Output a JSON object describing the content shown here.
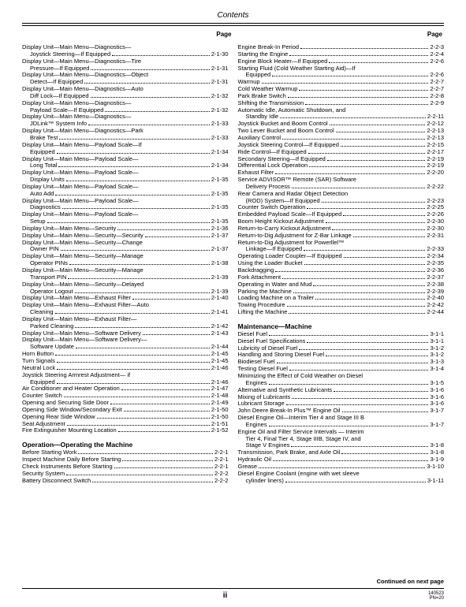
{
  "header": {
    "title": "Contents"
  },
  "colHeader": "Page",
  "footer": {
    "continued": "Continued on next page",
    "center": "ii",
    "rightTop": "140523",
    "rightBottom": "PN=20"
  },
  "leftCol": {
    "entries": [
      {
        "label": "Display Unit—Main Menu—Diagnostics—",
        "page": null
      },
      {
        "label": "Joystick Steering—If Equipped",
        "page": "2-1-30",
        "cont": true
      },
      {
        "label": "Display Unit—Main Menu—Diagnostics—Tire",
        "page": null
      },
      {
        "label": "Pressure—If Equipped",
        "page": "2-1-31",
        "cont": true
      },
      {
        "label": "Display Unit—Main Menu—Diagnostics—Object",
        "page": null
      },
      {
        "label": "Detect—If Equipped",
        "page": "2-1-31",
        "cont": true
      },
      {
        "label": "Display Unit—Main Menu—Diagnostics—Auto",
        "page": null
      },
      {
        "label": "Diff Lock—If Equipped",
        "page": "2-1-32",
        "cont": true
      },
      {
        "label": "Display Unit—Main Menu—Diagnostics—",
        "page": null
      },
      {
        "label": "Payload Scale—If Equipped",
        "page": "2-1-32",
        "cont": true
      },
      {
        "label": "Display Unit—Main Menu—Diagnostics—",
        "page": null
      },
      {
        "label": "JDLink™ System Info",
        "page": "2-1-33",
        "cont": true
      },
      {
        "label": "Display Unit—Main Menu—Diagnostics—Park",
        "page": null
      },
      {
        "label": "Brake Test",
        "page": "2-1-33",
        "cont": true
      },
      {
        "label": "Display Unit—Main Menu—Payload Scale—If",
        "page": null
      },
      {
        "label": "Equipped",
        "page": "2-1-34",
        "cont": true
      },
      {
        "label": "Display Unit—Main Menu—Payload Scale—",
        "page": null
      },
      {
        "label": "Long Total",
        "page": "2-1-34",
        "cont": true
      },
      {
        "label": "Display Unit—Main Menu—Payload Scale—",
        "page": null
      },
      {
        "label": "Display Units",
        "page": "2-1-35",
        "cont": true
      },
      {
        "label": "Display Unit—Main Menu—Payload Scale—",
        "page": null
      },
      {
        "label": "Auto Add",
        "page": "2-1-35",
        "cont": true
      },
      {
        "label": "Display Unit—Main Menu—Payload Scale—",
        "page": null
      },
      {
        "label": "Diagnostics",
        "page": "2-1-35",
        "cont": true
      },
      {
        "label": "Display Unit—Main Menu—Payload Scale—",
        "page": null
      },
      {
        "label": "Setup",
        "page": "2-1-35",
        "cont": true
      },
      {
        "label": "Display Unit—Main Menu—Security",
        "page": "2-1-36"
      },
      {
        "label": "Display Unit—Main Menu—Security—Security",
        "page": "2-1-37"
      },
      {
        "label": "Display Unit—Main Menu—Security—Change",
        "page": null
      },
      {
        "label": "Owner PIN",
        "page": "2-1-37",
        "cont": true
      },
      {
        "label": "Display Unit—Main Menu—Security—Manage",
        "page": null
      },
      {
        "label": "Operator PINs",
        "page": "2-1-38",
        "cont": true
      },
      {
        "label": "Display Unit—Main Menu—Security—Manage",
        "page": null
      },
      {
        "label": "Transport PIN",
        "page": "2-1-39",
        "cont": true
      },
      {
        "label": "Display Unit—Main Menu—Security—Delayed",
        "page": null
      },
      {
        "label": "Operator Logout",
        "page": "2-1-39",
        "cont": true
      },
      {
        "label": "Display Unit—Main Menu—Exhaust Filter",
        "page": "2-1-40"
      },
      {
        "label": "Display Unit—Main Menu—Exhaust Filter—Auto",
        "page": null
      },
      {
        "label": "Cleaning",
        "page": "2-1-41",
        "cont": true
      },
      {
        "label": "Display Unit—Main Menu—Exhaust Filter—",
        "page": null
      },
      {
        "label": "Parked Cleaning",
        "page": "2-1-42",
        "cont": true
      },
      {
        "label": "Display Unit—Main Menu—Software Delivery",
        "page": "2-1-43"
      },
      {
        "label": "Display Unit—Main Menu—Software Delivery—",
        "page": null
      },
      {
        "label": "Software Update",
        "page": "2-1-44",
        "cont": true
      },
      {
        "label": "Horn Button",
        "page": "2-1-45"
      },
      {
        "label": "Turn Signals",
        "page": "2-1-45"
      },
      {
        "label": "Neutral Lock",
        "page": "2-1-46"
      },
      {
        "label": "Joystick Steering Armrest Adjustment— if",
        "page": null
      },
      {
        "label": "Equipped",
        "page": "2-1-46",
        "cont": true
      },
      {
        "label": "Air Conditioner and Heater Operation",
        "page": "2-1-47"
      },
      {
        "label": "Counter Switch",
        "page": "2-1-48"
      },
      {
        "label": "Opening and Securing Side Door",
        "page": "2-1-49"
      },
      {
        "label": "Opening Side Window/Secondary Exit",
        "page": "2-1-50"
      },
      {
        "label": "Opening Rear Side Window",
        "page": "2-1-50"
      },
      {
        "label": "Seat Adjustment",
        "page": "2-1-51"
      },
      {
        "label": "Fire Extinguisher Mounting Location",
        "page": "2-1-52"
      }
    ],
    "sectionTitle": "Operation—Operating the Machine",
    "sectionEntries": [
      {
        "label": "Before Starting Work",
        "page": "2-2-1"
      },
      {
        "label": "Inspect Machine Daily Before Starting",
        "page": "2-2-1"
      },
      {
        "label": "Check Instruments Before Starting",
        "page": "2-2-1"
      },
      {
        "label": "Security System",
        "page": "2-2-2"
      },
      {
        "label": "Battery Disconnect Switch",
        "page": "2-2-2"
      }
    ]
  },
  "rightCol": {
    "entries": [
      {
        "label": "Engine Break-In Period",
        "page": "2-2-3"
      },
      {
        "label": "Starting the Engine",
        "page": "2-2-4"
      },
      {
        "label": "Engine Block Heater—If Equipped",
        "page": "2-2-6"
      },
      {
        "label": "Starting Fluid (Cold Weather Starting Aid)—If",
        "page": null
      },
      {
        "label": "Equipped",
        "page": "2-2-6",
        "cont": true
      },
      {
        "label": "Warmup",
        "page": "2-2-7"
      },
      {
        "label": "Cold Weather Warmup",
        "page": "2-2-7"
      },
      {
        "label": "Park Brake Switch",
        "page": "2-2-8"
      },
      {
        "label": "Shifting the Transmission",
        "page": "2-2-9"
      },
      {
        "label": "Automatic Idle, Automatic Shutdown, and",
        "page": null
      },
      {
        "label": "Standby Idle",
        "page": "2-2-11",
        "cont": true
      },
      {
        "label": "Joystick Bucket and Boom Control",
        "page": "2-2-12"
      },
      {
        "label": "Two Lever Bucket and Boom Control",
        "page": "2-2-13"
      },
      {
        "label": "Auxiliary Control",
        "page": "2-2-13"
      },
      {
        "label": "Joystick Steering Control—If Equipped",
        "page": "2-2-15"
      },
      {
        "label": "Ride Control—If Equipped",
        "page": "2-2-17"
      },
      {
        "label": "Secondary Steering—If Equipped",
        "page": "2-2-19"
      },
      {
        "label": "Differential Lock Operation",
        "page": "2-2-19"
      },
      {
        "label": "Exhaust Filter",
        "page": "2-2-20"
      },
      {
        "label": "Service ADVISOR™ Remote (SAR) Software",
        "page": null
      },
      {
        "label": "Delivery Process",
        "page": "2-2-22",
        "cont": true
      },
      {
        "label": "Rear Camera and Radar Object Detection",
        "page": null
      },
      {
        "label": "(ROD) System—If Equipped",
        "page": "2-2-23",
        "cont": true
      },
      {
        "label": "Counter Switch Operation",
        "page": "2-2-25"
      },
      {
        "label": "Embedded Payload Scale—If Equipped",
        "page": "2-2-26"
      },
      {
        "label": "Boom Height Kickout Adjustment",
        "page": "2-2-30"
      },
      {
        "label": "Return-to-Carry Kickout Adjustment",
        "page": "2-2-30"
      },
      {
        "label": "Return-to-Dig Adjustment for Z-Bar Linkage",
        "page": "2-2-31"
      },
      {
        "label": "Return-to-Dig Adjustment for Powerllel™",
        "page": null
      },
      {
        "label": "Linkage—If Equipped",
        "page": "2-2-33",
        "cont": true
      },
      {
        "label": "Operating Loader Coupler—If Equipped",
        "page": "2-2-34"
      },
      {
        "label": "Using the Loader Bucket",
        "page": "2-2-35"
      },
      {
        "label": "Backdragging",
        "page": "2-2-36"
      },
      {
        "label": "Fork Attachment",
        "page": "2-2-37"
      },
      {
        "label": "Operating in Water and Mud",
        "page": "2-2-38"
      },
      {
        "label": "Parking the Machine",
        "page": "2-2-39"
      },
      {
        "label": "Loading Machine on a Trailer",
        "page": "2-2-40"
      },
      {
        "label": "Towing Procedure",
        "page": "2-2-42"
      },
      {
        "label": "Lifting the Machine",
        "page": "2-2-44"
      }
    ],
    "sectionTitle": "Maintenance—Machine",
    "sectionEntries": [
      {
        "label": "Diesel Fuel",
        "page": "3-1-1"
      },
      {
        "label": "Diesel Fuel Specifications",
        "page": "3-1-1"
      },
      {
        "label": "Lubricity of Diesel Fuel",
        "page": "3-1-2"
      },
      {
        "label": "Handling and Storing Diesel Fuel",
        "page": "3-1-2"
      },
      {
        "label": "Biodiesel Fuel",
        "page": "3-1-3"
      },
      {
        "label": "Testing Diesel Fuel",
        "page": "3-1-4"
      },
      {
        "label": "Minimizing the Effect of Cold Weather on Diesel",
        "page": null
      },
      {
        "label": "Engines",
        "page": "3-1-5",
        "cont": true
      },
      {
        "label": "Alternative and Synthetic Lubricants",
        "page": "3-1-6"
      },
      {
        "label": "Mixing of Lubricants",
        "page": "3-1-6"
      },
      {
        "label": "Lubricant Storage",
        "page": "3-1-6"
      },
      {
        "label": "John Deere Break-In Plus™ Engine Oil",
        "page": "3-1-7"
      },
      {
        "label": "Diesel Engine Oil—Interim Tier 4 and Stage III B",
        "page": null
      },
      {
        "label": "Engines",
        "page": "3-1-7",
        "cont": true
      },
      {
        "label": "Engine Oil and Filter Service Intervals — Interim",
        "page": null
      },
      {
        "label": "Tier 4, Final Tier 4, Stage IIIB, Stage IV, and",
        "page": null,
        "cont": true
      },
      {
        "label": "Stage V Engines",
        "page": "3-1-8",
        "cont": true
      },
      {
        "label": "Transmission, Park Brake, and Axle Oil",
        "page": "3-1-8"
      },
      {
        "label": "Hydraulic Oil",
        "page": "3-1-9"
      },
      {
        "label": "Grease",
        "page": "3-1-10"
      },
      {
        "label": "Diesel Engine Coolant (engine with wet sleeve",
        "page": null
      },
      {
        "label": "cylinder liners)",
        "page": "3-1-11",
        "cont": true
      }
    ]
  }
}
